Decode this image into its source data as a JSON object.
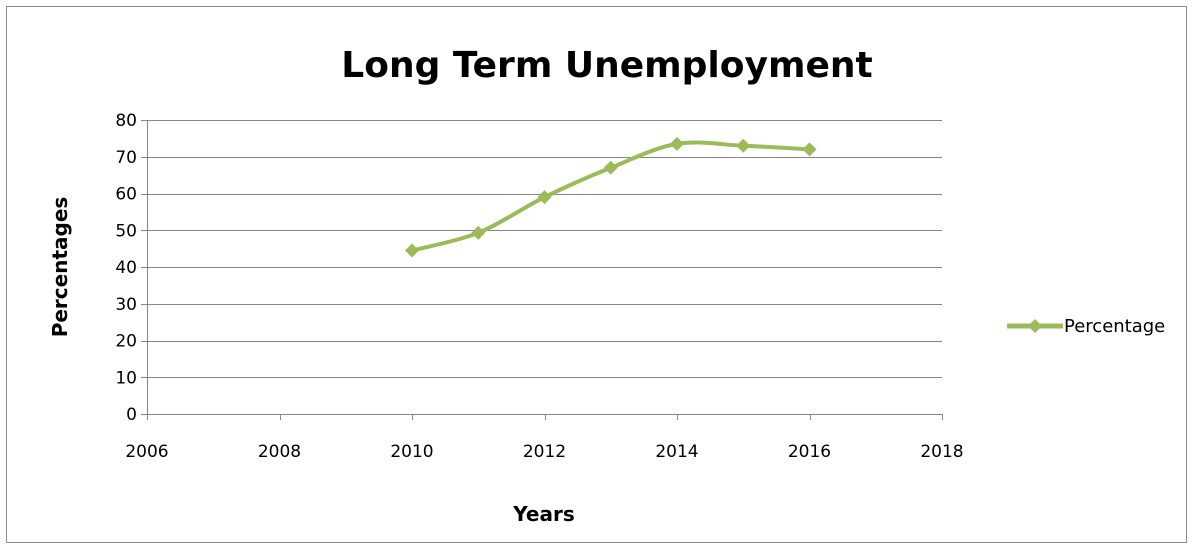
{
  "chart_data": {
    "type": "scatter",
    "title": "Long Term Unemployment",
    "xlabel": "Years",
    "ylabel": "Percentages",
    "xlim": [
      2006,
      2018
    ],
    "ylim": [
      0,
      80
    ],
    "x_ticks": [
      2006,
      2008,
      2010,
      2012,
      2014,
      2016,
      2018
    ],
    "y_ticks": [
      0,
      10,
      20,
      30,
      40,
      50,
      60,
      70,
      80
    ],
    "grid": "horizontal",
    "legend_position": "right",
    "line_style": "smoothed-line-with-diamond-markers",
    "series": [
      {
        "name": "Percentage",
        "color": "#9BBB59",
        "marker": "diamond",
        "points": [
          {
            "x": 2010,
            "y": 44.5
          },
          {
            "x": 2011,
            "y": 49.3
          },
          {
            "x": 2012,
            "y": 59.0
          },
          {
            "x": 2013,
            "y": 67.0
          },
          {
            "x": 2014,
            "y": 73.5
          },
          {
            "x": 2015,
            "y": 73.0
          },
          {
            "x": 2016,
            "y": 72.0
          }
        ]
      }
    ]
  }
}
